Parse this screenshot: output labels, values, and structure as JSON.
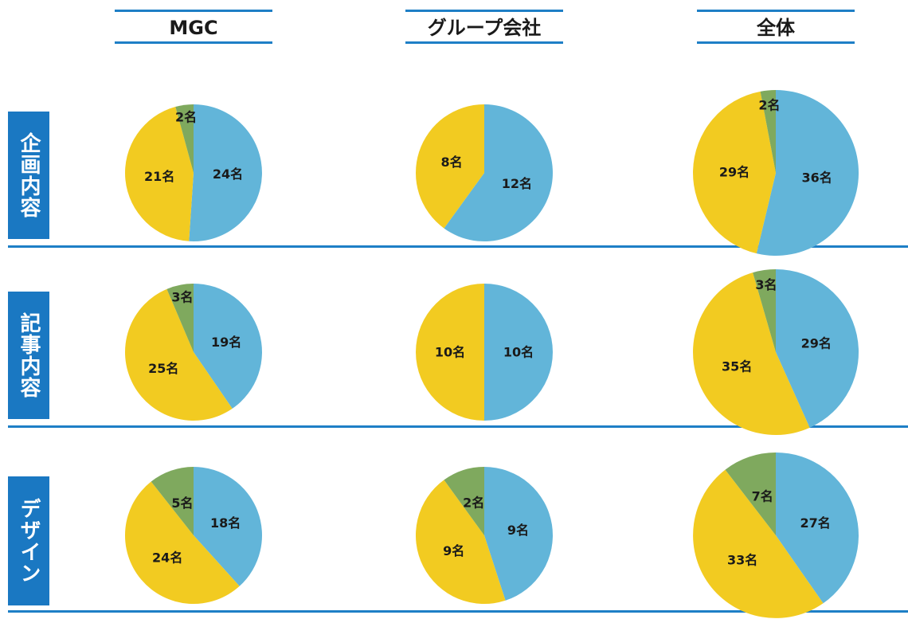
{
  "colors": {
    "accent": "#1a78c2",
    "rule": "#1e7fc6",
    "blue_slice": "#62b5d9",
    "yellow_slice": "#f2cb21",
    "green_slice": "#7fa95e"
  },
  "columns": [
    "MGC",
    "グループ会社",
    "全体"
  ],
  "rows": [
    "企画内容",
    "記事内容",
    "デザイン"
  ],
  "chart_data": [
    {
      "type": "pie",
      "row": "企画内容",
      "column": "MGC",
      "slices": [
        {
          "value": 24,
          "label": "24名",
          "color": "blue"
        },
        {
          "value": 21,
          "label": "21名",
          "color": "yellow"
        },
        {
          "value": 2,
          "label": "2名",
          "color": "green"
        }
      ]
    },
    {
      "type": "pie",
      "row": "企画内容",
      "column": "グループ会社",
      "slices": [
        {
          "value": 12,
          "label": "12名",
          "color": "blue"
        },
        {
          "value": 8,
          "label": "8名",
          "color": "yellow"
        }
      ]
    },
    {
      "type": "pie",
      "row": "企画内容",
      "column": "全体",
      "slices": [
        {
          "value": 36,
          "label": "36名",
          "color": "blue"
        },
        {
          "value": 29,
          "label": "29名",
          "color": "yellow"
        },
        {
          "value": 2,
          "label": "2名",
          "color": "green"
        }
      ]
    },
    {
      "type": "pie",
      "row": "記事内容",
      "column": "MGC",
      "slices": [
        {
          "value": 19,
          "label": "19名",
          "color": "blue"
        },
        {
          "value": 25,
          "label": "25名",
          "color": "yellow"
        },
        {
          "value": 3,
          "label": "3名",
          "color": "green"
        }
      ]
    },
    {
      "type": "pie",
      "row": "記事内容",
      "column": "グループ会社",
      "slices": [
        {
          "value": 10,
          "label": "10名",
          "color": "blue"
        },
        {
          "value": 10,
          "label": "10名",
          "color": "yellow"
        }
      ]
    },
    {
      "type": "pie",
      "row": "記事内容",
      "column": "全体",
      "slices": [
        {
          "value": 29,
          "label": "29名",
          "color": "blue"
        },
        {
          "value": 35,
          "label": "35名",
          "color": "yellow"
        },
        {
          "value": 3,
          "label": "3名",
          "color": "green"
        }
      ]
    },
    {
      "type": "pie",
      "row": "デザイン",
      "column": "MGC",
      "slices": [
        {
          "value": 18,
          "label": "18名",
          "color": "blue"
        },
        {
          "value": 24,
          "label": "24名",
          "color": "yellow"
        },
        {
          "value": 5,
          "label": "5名",
          "color": "green"
        }
      ]
    },
    {
      "type": "pie",
      "row": "デザイン",
      "column": "グループ会社",
      "slices": [
        {
          "value": 9,
          "label": "9名",
          "color": "blue"
        },
        {
          "value": 9,
          "label": "9名",
          "color": "yellow"
        },
        {
          "value": 2,
          "label": "2名",
          "color": "green"
        }
      ]
    },
    {
      "type": "pie",
      "row": "デザイン",
      "column": "全体",
      "slices": [
        {
          "value": 27,
          "label": "27名",
          "color": "blue"
        },
        {
          "value": 33,
          "label": "33名",
          "color": "yellow"
        },
        {
          "value": 7,
          "label": "7名",
          "color": "green"
        }
      ]
    }
  ]
}
